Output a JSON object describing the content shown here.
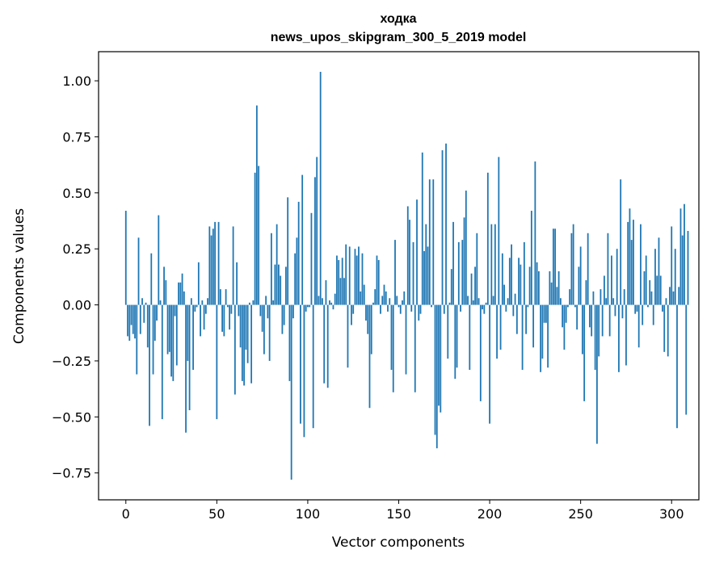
{
  "chart_data": {
    "type": "bar",
    "title_line1": "ходка",
    "title_line2": "news_upos_skipgram_300_5_2019 model",
    "xlabel": "Vector components",
    "ylabel": "Components values",
    "xlim": [
      -15,
      315
    ],
    "ylim": [
      -0.87,
      1.13
    ],
    "xticks": [
      0,
      50,
      100,
      150,
      200,
      250,
      300
    ],
    "xtick_labels": [
      "0",
      "50",
      "100",
      "150",
      "200",
      "250",
      "300"
    ],
    "yticks": [
      -0.75,
      -0.5,
      -0.25,
      0.0,
      0.25,
      0.5,
      0.75,
      1.0
    ],
    "ytick_labels": [
      "−0.75",
      "−0.50",
      "−0.25",
      "0.00",
      "0.25",
      "0.50",
      "0.75",
      "1.00"
    ],
    "bar_color": "#1f77b4",
    "grid": false,
    "values": [
      0.42,
      -0.14,
      -0.16,
      -0.09,
      -0.13,
      -0.15,
      -0.31,
      0.3,
      -0.13,
      0.03,
      -0.08,
      0.01,
      -0.19,
      -0.54,
      0.23,
      -0.31,
      -0.16,
      -0.07,
      0.4,
      0.02,
      -0.51,
      0.17,
      0.11,
      -0.22,
      -0.21,
      -0.32,
      -0.34,
      -0.05,
      -0.27,
      0.1,
      0.1,
      0.14,
      0.06,
      -0.57,
      -0.25,
      -0.47,
      0.03,
      -0.29,
      -0.03,
      -0.01,
      0.19,
      -0.14,
      0.02,
      -0.11,
      -0.04,
      0.03,
      0.35,
      0.31,
      0.34,
      0.37,
      -0.51,
      0.37,
      0.07,
      -0.12,
      -0.14,
      0.07,
      -0.01,
      -0.11,
      -0.04,
      0.35,
      -0.4,
      0.19,
      -0.05,
      -0.19,
      -0.34,
      -0.36,
      -0.2,
      -0.26,
      0.01,
      -0.35,
      0.02,
      0.59,
      0.89,
      0.62,
      -0.05,
      -0.12,
      -0.22,
      0.04,
      -0.06,
      -0.25,
      0.32,
      0.02,
      0.18,
      0.36,
      0.18,
      0.13,
      -0.13,
      -0.09,
      0.17,
      0.48,
      -0.34,
      -0.78,
      -0.06,
      0.23,
      0.3,
      0.46,
      -0.53,
      0.58,
      -0.59,
      -0.03,
      -0.01,
      -0.01,
      0.41,
      -0.55,
      0.57,
      0.66,
      0.04,
      1.04,
      0.03,
      -0.35,
      0.11,
      -0.37,
      0.02,
      0.01,
      -0.02,
      0.05,
      0.22,
      0.2,
      0.12,
      0.21,
      0.12,
      0.27,
      -0.28,
      0.26,
      -0.09,
      -0.04,
      0.25,
      0.22,
      0.26,
      0.06,
      0.23,
      0.09,
      -0.07,
      -0.13,
      -0.46,
      -0.22,
      0.01,
      0.07,
      0.22,
      0.2,
      -0.04,
      0.04,
      0.09,
      0.06,
      -0.03,
      0.03,
      -0.29,
      -0.39,
      0.29,
      0.04,
      -0.01,
      -0.04,
      0.02,
      0.06,
      -0.31,
      0.44,
      0.38,
      -0.03,
      0.28,
      -0.39,
      0.47,
      -0.07,
      -0.04,
      0.68,
      0.24,
      0.36,
      0.26,
      0.56,
      -0.01,
      0.56,
      -0.58,
      -0.64,
      -0.45,
      -0.48,
      0.69,
      -0.04,
      0.72,
      -0.24,
      0.01,
      0.16,
      0.37,
      -0.33,
      -0.28,
      0.28,
      -0.03,
      0.29,
      0.39,
      0.51,
      0.04,
      -0.29,
      0.14,
      0.02,
      0.17,
      0.32,
      0.03,
      -0.43,
      -0.02,
      -0.04,
      0.01,
      0.59,
      -0.53,
      0.36,
      0.04,
      0.36,
      -0.24,
      0.66,
      -0.2,
      0.23,
      0.09,
      -0.03,
      0.03,
      0.21,
      0.27,
      -0.05,
      0.05,
      -0.13,
      0.21,
      0.18,
      -0.29,
      0.28,
      -0.13,
      -0.01,
      0.17,
      0.42,
      -0.19,
      0.64,
      0.19,
      0.15,
      -0.3,
      -0.24,
      -0.08,
      -0.08,
      -0.28,
      0.15,
      0.1,
      0.34,
      0.34,
      0.08,
      0.15,
      0.03,
      -0.1,
      -0.2,
      -0.08,
      -0.01,
      0.07,
      0.32,
      0.36,
      -0.01,
      -0.11,
      0.17,
      0.26,
      -0.22,
      -0.43,
      0.11,
      0.32,
      -0.1,
      -0.14,
      0.06,
      -0.29,
      -0.62,
      -0.23,
      0.07,
      -0.14,
      0.13,
      0.03,
      0.32,
      -0.14,
      0.22,
      0.03,
      -0.05,
      0.25,
      -0.3,
      0.56,
      -0.06,
      0.07,
      -0.27,
      0.37,
      0.43,
      0.29,
      0.38,
      -0.04,
      -0.03,
      -0.19,
      0.36,
      -0.09,
      0.15,
      0.22,
      -0.01,
      0.11,
      0.06,
      -0.09,
      0.25,
      0.13,
      0.3,
      0.13,
      -0.03,
      -0.21,
      0.03,
      -0.23,
      0.08,
      0.35,
      0.06,
      0.25,
      -0.55,
      0.08,
      0.43,
      0.31,
      0.45,
      -0.49,
      0.33
    ]
  }
}
